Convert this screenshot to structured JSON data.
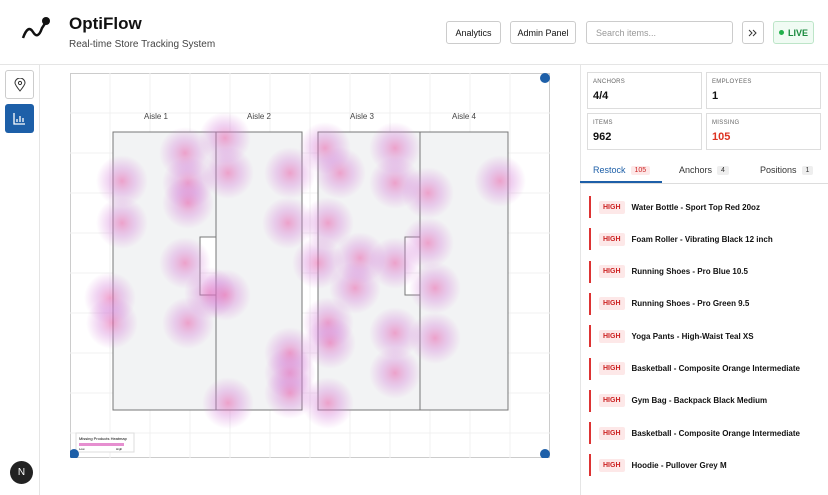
{
  "header": {
    "title": "OptiFlow",
    "subtitle": "Real-time Store Tracking System",
    "buttons": [
      "Analytics",
      "Admin Panel"
    ],
    "search_placeholder": "Search items...",
    "status": "LIVE"
  },
  "map": {
    "aisles": [
      "Aisle 1",
      "Aisle 2",
      "Aisle 3",
      "Aisle 4"
    ],
    "legend": {
      "title": "Missing Products Heatmap",
      "low": "Low",
      "high": "High"
    }
  },
  "stats": [
    {
      "label": "ANCHORS",
      "value": "4/4"
    },
    {
      "label": "EMPLOYEES",
      "value": 1
    },
    {
      "label": "ITEMS",
      "value": 962
    },
    {
      "label": "MISSING",
      "value": 105
    }
  ],
  "tabs": [
    {
      "label": "Restock",
      "count": 105
    },
    {
      "label": "Anchors",
      "count": 4
    },
    {
      "label": "Positions",
      "count": 1
    }
  ],
  "restock": [
    {
      "priority": "HIGH",
      "item": "Water Bottle - Sport Top Red 20oz"
    },
    {
      "priority": "HIGH",
      "item": "Foam Roller - Vibrating Black 12 inch"
    },
    {
      "priority": "HIGH",
      "item": "Running Shoes - Pro Blue 10.5"
    },
    {
      "priority": "HIGH",
      "item": "Running Shoes - Pro Green 9.5"
    },
    {
      "priority": "HIGH",
      "item": "Yoga Pants - High-Waist Teal XS"
    },
    {
      "priority": "HIGH",
      "item": "Basketball - Composite Orange Intermediate"
    },
    {
      "priority": "HIGH",
      "item": "Gym Bag - Backpack Black Medium"
    },
    {
      "priority": "HIGH",
      "item": "Basketball - Composite Orange Intermediate"
    },
    {
      "priority": "HIGH",
      "item": "Hoodie - Pullover Grey M"
    }
  ]
}
